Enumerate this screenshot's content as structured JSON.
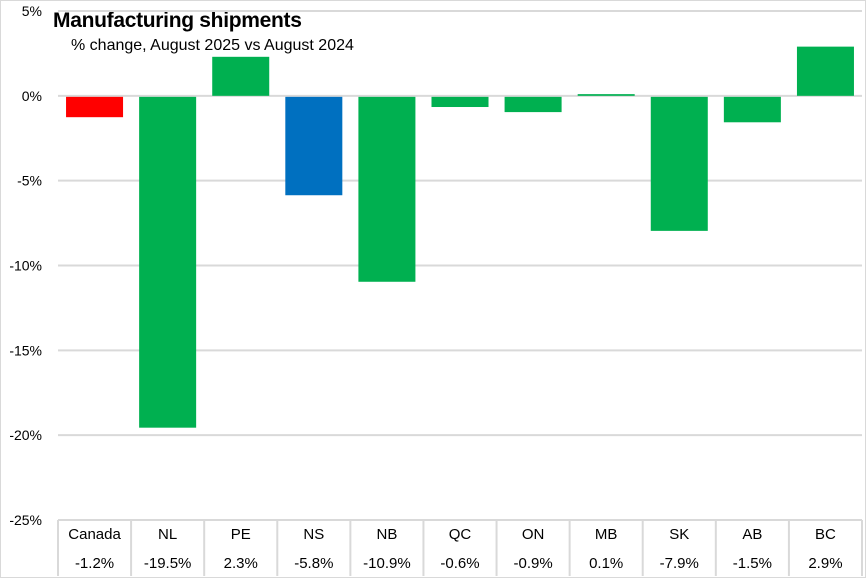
{
  "chart_data": {
    "type": "bar",
    "title": "Manufacturing shipments",
    "subtitle": "% change, August 2025 vs August 2024",
    "xlabel": "",
    "ylabel": "",
    "ylim": [
      -25,
      5
    ],
    "yticks": [
      5,
      0,
      -5,
      -10,
      -15,
      -20,
      -25
    ],
    "ytick_labels": [
      "5%",
      "0%",
      "-5%",
      "-10%",
      "-15%",
      "-20%",
      "-25%"
    ],
    "grid": true,
    "legend": "none",
    "categories": [
      "Canada",
      "NL",
      "PE",
      "NS",
      "NB",
      "QC",
      "ON",
      "MB",
      "SK",
      "AB",
      "BC"
    ],
    "values": [
      -1.2,
      -19.5,
      2.3,
      -5.8,
      -10.9,
      -0.6,
      -0.9,
      0.1,
      -7.9,
      -1.5,
      2.9
    ],
    "value_labels": [
      "-1.2%",
      "-19.5%",
      "2.3%",
      "-5.8%",
      "-10.9%",
      "-0.6%",
      "-0.9%",
      "0.1%",
      "-7.9%",
      "-1.5%",
      "2.9%"
    ],
    "colors": [
      "#ff0000",
      "#00b050",
      "#00b050",
      "#0070c0",
      "#00b050",
      "#00b050",
      "#00b050",
      "#00b050",
      "#00b050",
      "#00b050",
      "#00b050"
    ],
    "gridline_color": "#d9d9d9"
  }
}
